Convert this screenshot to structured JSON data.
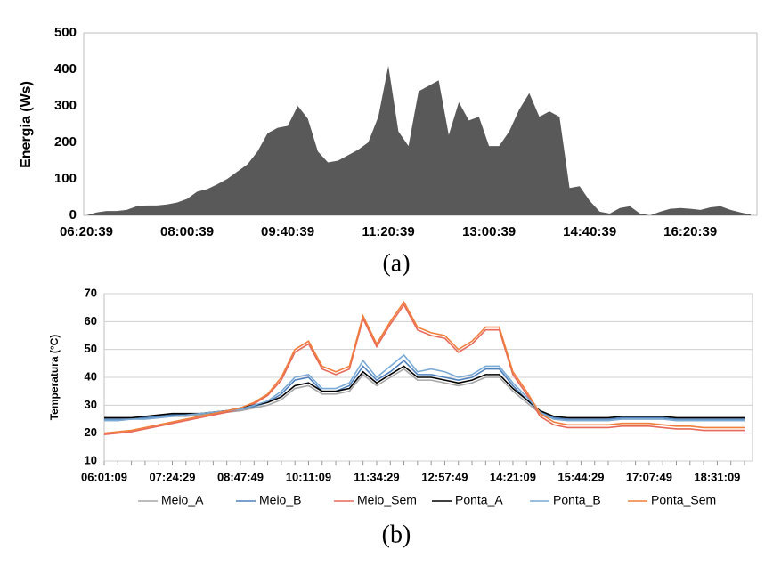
{
  "chart_data": [
    {
      "type": "area",
      "caption": "(a)",
      "y_label": "Energia (Ws)",
      "color": "#595959",
      "grid": false,
      "ylim": [
        0,
        500
      ],
      "yticks": [
        0,
        100,
        200,
        300,
        400,
        500
      ],
      "categories": [
        "06:20:39",
        null,
        null,
        null,
        null,
        null,
        null,
        null,
        null,
        null,
        "08:00:39",
        null,
        null,
        null,
        null,
        null,
        null,
        null,
        null,
        null,
        "09:40:39",
        null,
        null,
        null,
        null,
        null,
        null,
        null,
        null,
        null,
        "11:20:39",
        null,
        null,
        null,
        null,
        null,
        null,
        null,
        null,
        null,
        "13:00:39",
        null,
        null,
        null,
        null,
        null,
        null,
        null,
        null,
        null,
        "14:40:39",
        null,
        null,
        null,
        null,
        null,
        null,
        null,
        null,
        null,
        "16:20:39",
        null,
        null,
        null,
        null,
        null,
        null
      ],
      "values": [
        0,
        8,
        12,
        12,
        15,
        25,
        27,
        27,
        30,
        35,
        45,
        65,
        72,
        85,
        100,
        120,
        140,
        175,
        225,
        240,
        245,
        300,
        265,
        175,
        145,
        150,
        165,
        180,
        200,
        270,
        410,
        230,
        190,
        340,
        355,
        370,
        220,
        310,
        260,
        270,
        190,
        190,
        230,
        290,
        335,
        270,
        285,
        270,
        75,
        80,
        40,
        10,
        5,
        20,
        25,
        5,
        0,
        10,
        18,
        20,
        18,
        15,
        22,
        25,
        15,
        8,
        2
      ]
    },
    {
      "type": "line",
      "caption": "(b)",
      "y_label": "Temperatura (°C)",
      "grid": true,
      "ylim": [
        10,
        70
      ],
      "yticks": [
        10,
        20,
        30,
        40,
        50,
        60,
        70
      ],
      "categories": [
        "06:01:09",
        null,
        null,
        null,
        null,
        "07:24:29",
        null,
        null,
        null,
        null,
        "08:47:49",
        null,
        null,
        null,
        null,
        "10:11:09",
        null,
        null,
        null,
        null,
        "11:34:29",
        null,
        null,
        null,
        null,
        "12:57:49",
        null,
        null,
        null,
        null,
        "14:21:09",
        null,
        null,
        null,
        null,
        "15:44:29",
        null,
        null,
        null,
        null,
        "17:07:49",
        null,
        null,
        null,
        null,
        "18:31:09",
        null,
        null
      ],
      "series": [
        {
          "name": "Meio_A",
          "color": "#a6a6a6",
          "values": [
            24.5,
            24.5,
            25,
            25,
            25.5,
            26,
            26,
            26.5,
            27,
            27.5,
            28,
            29,
            30,
            32,
            36,
            37,
            34,
            34,
            35,
            41,
            37,
            40,
            43,
            39,
            39,
            38,
            37,
            38,
            40,
            40,
            35,
            31,
            27,
            25,
            24.5,
            24.5,
            24.5,
            24.5,
            25,
            25,
            25,
            25,
            24.5,
            24.5,
            24.5,
            24.5,
            24.5,
            24.5
          ]
        },
        {
          "name": "Meio_B",
          "color": "#4f81bd",
          "values": [
            25,
            25,
            25,
            25.5,
            26,
            26.5,
            26.5,
            27,
            27.5,
            28,
            28.5,
            29.5,
            31,
            34,
            39,
            40,
            35,
            35,
            37,
            44,
            39,
            42,
            46,
            41,
            41,
            40,
            39,
            40,
            43,
            43,
            37,
            32,
            27.5,
            25.5,
            25,
            25,
            25,
            25,
            25.5,
            25.5,
            25.5,
            25.5,
            25,
            25,
            25,
            25,
            25,
            25
          ]
        },
        {
          "name": "Meio_Sem",
          "color": "#e8695a",
          "values": [
            19.5,
            20,
            20.5,
            21.5,
            22.5,
            23.5,
            24.5,
            25.5,
            26.5,
            27.5,
            28.5,
            30.5,
            33.5,
            39,
            49,
            52,
            43,
            41,
            43,
            61,
            51,
            59,
            66,
            57,
            55,
            54,
            49,
            52,
            57,
            57,
            41,
            34,
            26,
            23,
            22,
            22,
            22,
            22,
            22.5,
            22.5,
            22.5,
            22,
            21.5,
            21.5,
            21,
            21,
            21,
            21
          ]
        },
        {
          "name": "Ponta_A",
          "color": "#000000",
          "values": [
            25.5,
            25.5,
            25.5,
            26,
            26.5,
            27,
            27,
            27,
            27.5,
            28,
            29,
            30,
            31,
            33,
            37,
            38,
            35,
            35,
            36,
            42,
            38,
            41,
            44,
            40,
            40,
            39,
            38,
            39,
            41,
            41,
            36,
            32,
            28,
            26,
            25.5,
            25.5,
            25.5,
            25.5,
            26,
            26,
            26,
            26,
            25.5,
            25.5,
            25.5,
            25.5,
            25.5,
            25.5
          ]
        },
        {
          "name": "Ponta_B",
          "color": "#7aaad6",
          "values": [
            24.5,
            24.5,
            25,
            25,
            25.5,
            26,
            26.5,
            27,
            27.5,
            28,
            28.5,
            30,
            31.5,
            35,
            40,
            41,
            36,
            36,
            38,
            46,
            40,
            44,
            48,
            42,
            43,
            42,
            40,
            41,
            44,
            44,
            38,
            33,
            27.5,
            25,
            24.5,
            24.5,
            24.5,
            24.5,
            25,
            25,
            25,
            25,
            24.5,
            24.5,
            24.5,
            24.5,
            24.5,
            24.5
          ]
        },
        {
          "name": "Ponta_Sem",
          "color": "#f07f3c",
          "values": [
            20,
            20.5,
            21,
            22,
            23,
            24,
            25,
            26,
            27,
            28,
            29,
            31,
            34,
            40,
            50,
            53,
            44,
            42,
            44,
            62,
            52,
            60,
            67,
            58,
            56,
            55,
            50,
            53,
            58,
            58,
            42,
            35,
            27,
            24,
            23,
            23,
            23,
            23,
            23.5,
            23.5,
            23.5,
            23,
            22.5,
            22.5,
            22,
            22,
            22,
            22
          ]
        }
      ]
    }
  ]
}
